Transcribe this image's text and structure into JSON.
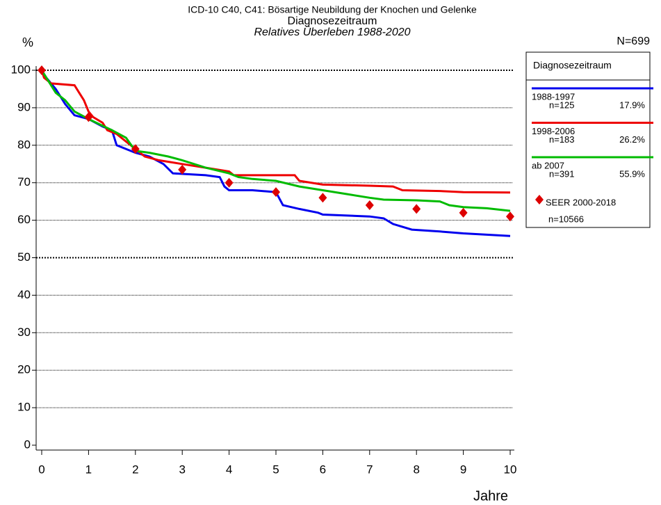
{
  "chart_data": {
    "type": "line",
    "title": "ICD-10 C40, C41: Bösartige Neubildung der Knochen und Gelenke",
    "subtitle": "Diagnosezeitraum",
    "subtitle2": "Relatives Überleben 1988-2020",
    "y_label": "%",
    "x_label": "Jahre",
    "total": "N=699",
    "legend_title": "Diagnosezeitraum",
    "xlim": [
      0,
      10
    ],
    "xticks": [
      0,
      1,
      2,
      3,
      4,
      5,
      6,
      7,
      8,
      9,
      10
    ],
    "ylim": [
      0,
      100
    ],
    "yticks": [
      0,
      10,
      20,
      30,
      40,
      50,
      60,
      70,
      80,
      90,
      100
    ],
    "grid": true,
    "series": [
      {
        "name": "1988-1997",
        "n": "n=125",
        "share": "17.9%",
        "color": "#0000ee",
        "x": [
          0,
          0.1,
          0.3,
          0.5,
          0.7,
          1.0,
          1.3,
          1.5,
          1.6,
          2.0,
          2.3,
          2.6,
          2.8,
          3.5,
          3.8,
          3.9,
          4.0,
          4.5,
          5.0,
          5.15,
          5.5,
          5.9,
          6.0,
          7.0,
          7.3,
          7.5,
          7.9,
          8.5,
          9.0,
          10.0
        ],
        "values": [
          100,
          98,
          95,
          91,
          88,
          87,
          85,
          84,
          80,
          78,
          77,
          75,
          72.5,
          72,
          71.5,
          69,
          68,
          68,
          67.5,
          64,
          63,
          62,
          61.5,
          61,
          60.5,
          59,
          57.5,
          57,
          56.5,
          55.8
        ]
      },
      {
        "name": "1998-2006",
        "n": "n=183",
        "share": "26.2%",
        "color": "#ee0000",
        "x": [
          0,
          0.05,
          0.2,
          0.7,
          0.8,
          0.9,
          1.0,
          1.1,
          1.3,
          1.4,
          1.6,
          1.8,
          2.0,
          2.2,
          2.5,
          3.0,
          3.5,
          4.0,
          4.1,
          5.0,
          5.4,
          5.5,
          6.0,
          7.0,
          7.5,
          7.7,
          8.5,
          9.0,
          10.0
        ],
        "values": [
          100,
          98,
          96.5,
          96,
          94,
          92,
          89,
          87.5,
          86,
          84,
          83,
          81,
          79,
          77,
          76,
          75,
          74,
          73,
          72,
          72,
          72,
          70.5,
          69.5,
          69.2,
          69,
          68,
          67.8,
          67.5,
          67.4
        ]
      },
      {
        "name": "ab 2007",
        "n": "n=391",
        "share": "55.9%",
        "color": "#00bb00",
        "x": [
          0,
          0.1,
          0.3,
          0.5,
          0.7,
          1.0,
          1.5,
          1.8,
          2.0,
          2.3,
          2.7,
          3.0,
          3.5,
          4.0,
          4.2,
          4.5,
          5.0,
          5.5,
          6.0,
          6.5,
          7.0,
          7.3,
          8.0,
          8.5,
          8.7,
          9.0,
          9.5,
          10.0
        ],
        "values": [
          100,
          98,
          94,
          92,
          89,
          87,
          84,
          82,
          78.5,
          78,
          77,
          76,
          74,
          72.5,
          71.5,
          71,
          70.5,
          69,
          68,
          67,
          66,
          65.5,
          65.3,
          65,
          64,
          63.5,
          63.2,
          62.5
        ]
      }
    ],
    "reference": {
      "name": "SEER 2000-2018",
      "n": "n=10566",
      "color": "#dd0000",
      "x": [
        0,
        1,
        2,
        3,
        4,
        5,
        6,
        7,
        8,
        9,
        10
      ],
      "values": [
        100,
        87.5,
        79,
        73.5,
        70,
        67.5,
        66,
        64,
        63,
        62,
        61
      ]
    }
  }
}
